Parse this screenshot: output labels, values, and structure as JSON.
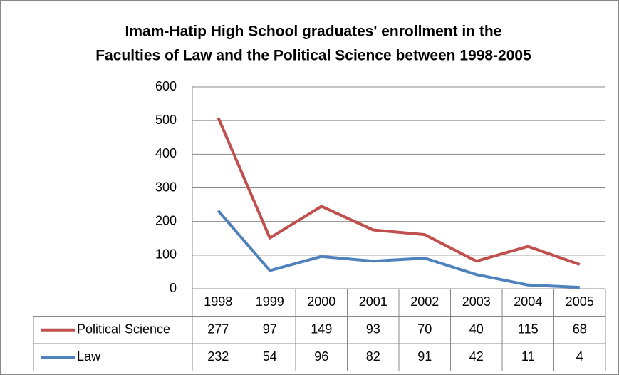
{
  "chart_data": {
    "type": "line",
    "stacked": true,
    "title": [
      "Imam-Hatip High School graduates'  enrollment in the",
      "Faculties of Law and the Political Science between 1998-2005"
    ],
    "categories": [
      "1998",
      "1999",
      "2000",
      "2001",
      "2002",
      "2003",
      "2004",
      "2005"
    ],
    "series": [
      {
        "name": "Political Science",
        "color": "#c0504d",
        "values": [
          277,
          97,
          149,
          93,
          70,
          40,
          115,
          68
        ]
      },
      {
        "name": "Law",
        "color": "#4f81bd",
        "values": [
          232,
          54,
          96,
          82,
          91,
          42,
          11,
          4
        ]
      }
    ],
    "ylim": [
      0,
      600
    ],
    "yticks": [
      0,
      100,
      200,
      300,
      400,
      500,
      600
    ],
    "grid": true,
    "data_table": true
  }
}
